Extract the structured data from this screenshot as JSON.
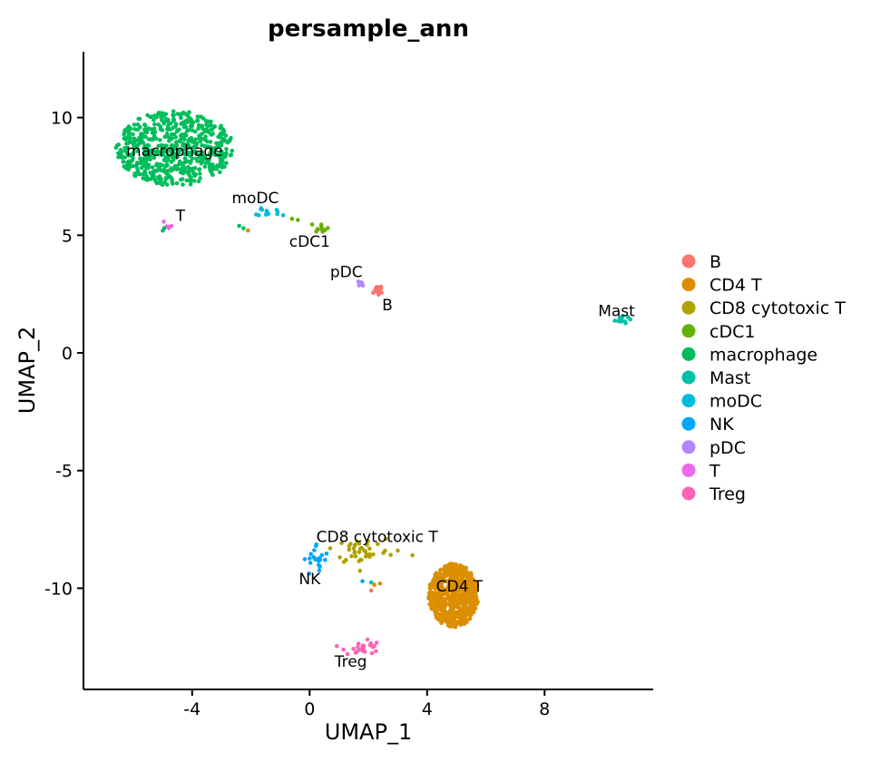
{
  "chart_data": {
    "type": "scatter",
    "title": "persample_ann",
    "xlabel": "UMAP_1",
    "ylabel": "UMAP_2",
    "xlim": [
      -7.7,
      11.7
    ],
    "ylim": [
      -14.3,
      12.8
    ],
    "xticks": [
      -4,
      0,
      4,
      8
    ],
    "yticks": [
      10,
      5,
      0,
      -5,
      -10
    ],
    "xtick_labels": [
      "-4",
      "0",
      "4",
      "8"
    ],
    "ytick_labels": [
      "10",
      "5",
      "0",
      "-5",
      "-10"
    ],
    "grid": false,
    "legend_position": "right",
    "categories": [
      "B",
      "CD4 T",
      "CD8 cytotoxic T",
      "cDC1",
      "macrophage",
      "Mast",
      "moDC",
      "NK",
      "pDC",
      "T",
      "Treg"
    ],
    "colors": [
      "#F8766D",
      "#DB8E00",
      "#AEA200",
      "#64B200",
      "#00BD5C",
      "#00C1A7",
      "#00BADE",
      "#00A6FF",
      "#B385FF",
      "#EF67EB",
      "#FF63B6"
    ],
    "clusters": [
      {
        "name": "macrophage",
        "label": "macrophage",
        "center": [
          -4.6,
          8.7
        ],
        "sx": 2.0,
        "sy": 1.6,
        "n": 620,
        "label_pos": [
          -4.6,
          8.6
        ]
      },
      {
        "name": "CD4 T",
        "label": "CD4 T",
        "center": [
          4.9,
          -10.3
        ],
        "sx": 0.85,
        "sy": 1.35,
        "n": 620,
        "label_pos": [
          5.1,
          -9.9
        ]
      },
      {
        "name": "CD8 cytotoxic T",
        "label": "CD8 cytotoxic T",
        "center": [
          1.8,
          -8.4
        ],
        "sx": 0.45,
        "sy": 0.3,
        "n": 40,
        "label_pos": [
          2.3,
          -7.8
        ]
      },
      {
        "name": "NK",
        "label": "NK",
        "center": [
          0.25,
          -8.8
        ],
        "sx": 0.22,
        "sy": 0.35,
        "n": 22,
        "label_pos": [
          0.0,
          -9.6
        ]
      },
      {
        "name": "Treg",
        "label": "Treg",
        "center": [
          1.8,
          -12.5
        ],
        "sx": 0.3,
        "sy": 0.18,
        "n": 24,
        "label_pos": [
          1.4,
          -13.1
        ]
      },
      {
        "name": "moDC",
        "label": "moDC",
        "center": [
          -1.45,
          6.0
        ],
        "sx": 0.15,
        "sy": 0.1,
        "n": 12,
        "label_pos": [
          -1.85,
          6.6
        ]
      },
      {
        "name": "cDC1",
        "label": "cDC1",
        "center": [
          0.4,
          5.35
        ],
        "sx": 0.12,
        "sy": 0.1,
        "n": 12,
        "label_pos": [
          0.0,
          4.75
        ]
      },
      {
        "name": "pDC",
        "label": "pDC",
        "center": [
          1.7,
          2.9
        ],
        "sx": 0.08,
        "sy": 0.1,
        "n": 7,
        "label_pos": [
          1.25,
          3.45
        ]
      },
      {
        "name": "B",
        "label": "B",
        "center": [
          2.3,
          2.65
        ],
        "sx": 0.13,
        "sy": 0.15,
        "n": 12,
        "label_pos": [
          2.65,
          2.05
        ]
      },
      {
        "name": "Mast",
        "label": "Mast",
        "center": [
          10.55,
          1.4
        ],
        "sx": 0.18,
        "sy": 0.07,
        "n": 14,
        "label_pos": [
          10.45,
          1.8
        ]
      },
      {
        "name": "T",
        "label": "T",
        "center": [
          -4.9,
          5.4
        ],
        "sx": 0.08,
        "sy": 0.1,
        "n": 4,
        "label_pos": [
          -4.4,
          5.85
        ]
      }
    ],
    "extra_points": [
      {
        "name": "moDC",
        "x": -1.1,
        "y": 5.9
      },
      {
        "name": "moDC",
        "x": -0.9,
        "y": 5.85
      },
      {
        "name": "cDC1",
        "x": -0.6,
        "y": 5.7
      },
      {
        "name": "cDC1",
        "x": -0.4,
        "y": 5.65
      },
      {
        "name": "macrophage",
        "x": -2.4,
        "y": 5.4
      },
      {
        "name": "macrophage",
        "x": -2.25,
        "y": 5.3
      },
      {
        "name": "macrophage",
        "x": -5.0,
        "y": 5.2
      },
      {
        "name": "macrophage",
        "x": -4.95,
        "y": 5.3
      },
      {
        "name": "CD4 T",
        "x": -2.1,
        "y": 5.2
      },
      {
        "name": "T",
        "x": -4.7,
        "y": 5.4
      },
      {
        "name": "CD4 T",
        "x": 2.2,
        "y": -9.85
      },
      {
        "name": "CD4 T",
        "x": 2.4,
        "y": -9.8
      },
      {
        "name": "Mast",
        "x": 2.1,
        "y": -9.75
      },
      {
        "name": "NK",
        "x": 1.8,
        "y": -9.7
      },
      {
        "name": "B",
        "x": 2.1,
        "y": -10.1
      },
      {
        "name": "CD8 cytotoxic T",
        "x": 2.6,
        "y": -7.9
      },
      {
        "name": "CD8 cytotoxic T",
        "x": 3.0,
        "y": -8.4
      },
      {
        "name": "CD8 cytotoxic T",
        "x": 3.5,
        "y": -8.6
      },
      {
        "name": "CD8 cytotoxic T",
        "x": 0.7,
        "y": -8.3
      }
    ]
  }
}
